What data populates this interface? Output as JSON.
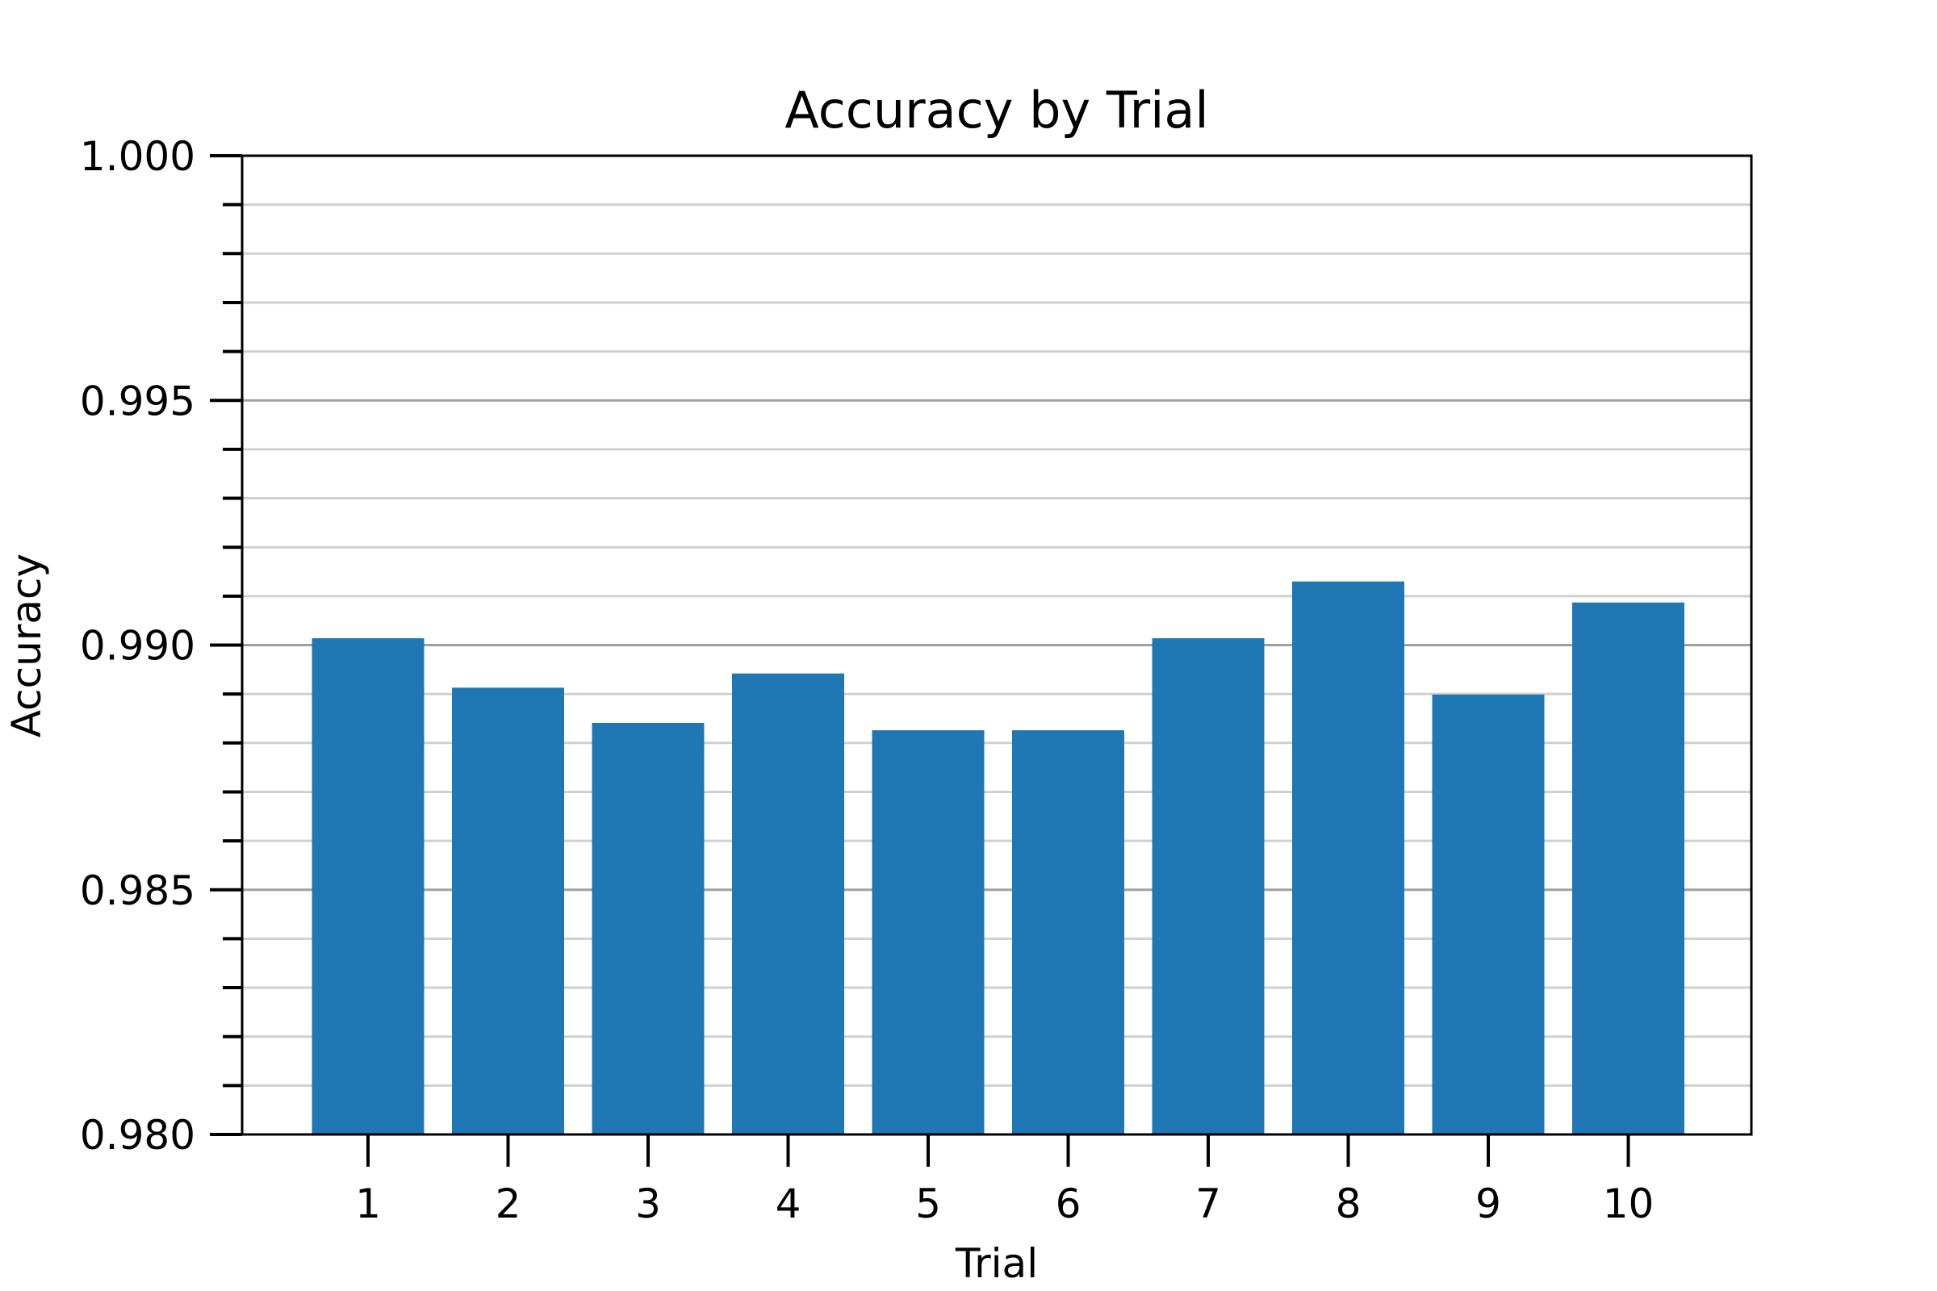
{
  "chart_data": {
    "type": "bar",
    "title": "Accuracy by Trial",
    "xlabel": "Trial",
    "ylabel": "Accuracy",
    "categories": [
      "1",
      "2",
      "3",
      "4",
      "5",
      "6",
      "7",
      "8",
      "9",
      "10"
    ],
    "values": [
      0.99014,
      0.98913,
      0.98841,
      0.98942,
      0.98826,
      0.98826,
      0.99014,
      0.9913,
      0.98899,
      0.99087
    ],
    "ylim": [
      0.98,
      1.0
    ],
    "yticks": [
      "0.980",
      "0.985",
      "0.990",
      "0.995",
      "1.000"
    ],
    "major_tick_step": 0.005,
    "minor_tick_step": 0.001,
    "grid": true,
    "bar_color": "#1f77b4",
    "major_grid_color": "#a0a0a0",
    "minor_grid_color": "#d0d0d0"
  }
}
